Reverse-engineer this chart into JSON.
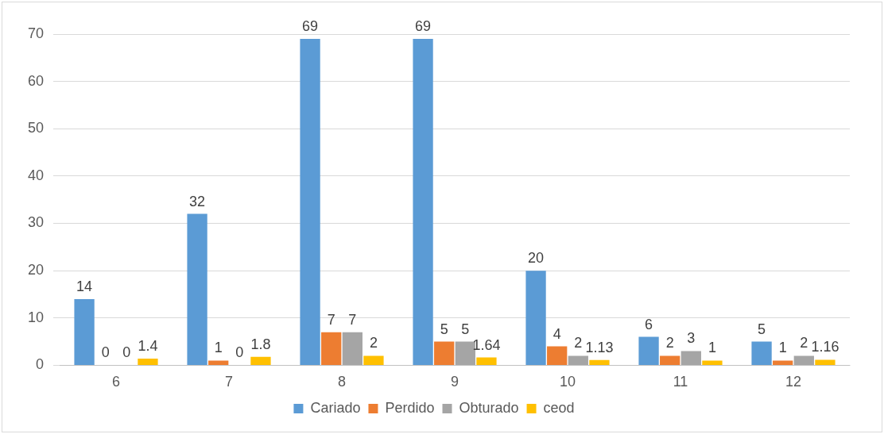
{
  "chart_data": {
    "type": "bar",
    "categories": [
      "6",
      "7",
      "8",
      "9",
      "10",
      "11",
      "12"
    ],
    "series": [
      {
        "name": "Cariado",
        "color": "#5b9bd5",
        "values": [
          14,
          32,
          69,
          69,
          20,
          6,
          5
        ]
      },
      {
        "name": "Perdido",
        "color": "#ed7d31",
        "values": [
          0,
          1,
          7,
          5,
          4,
          2,
          1
        ]
      },
      {
        "name": "Obturado",
        "color": "#a5a5a5",
        "values": [
          0,
          0,
          7,
          5,
          2,
          3,
          2
        ]
      },
      {
        "name": "ceod",
        "color": "#ffc000",
        "values": [
          1.4,
          1.8,
          2,
          1.64,
          1.13,
          1,
          1.16
        ]
      }
    ],
    "ylim": [
      0,
      70
    ],
    "yticks": [
      0,
      10,
      20,
      30,
      40,
      50,
      60,
      70
    ],
    "grid": "y",
    "legend": "bottom",
    "data_labels": true
  }
}
